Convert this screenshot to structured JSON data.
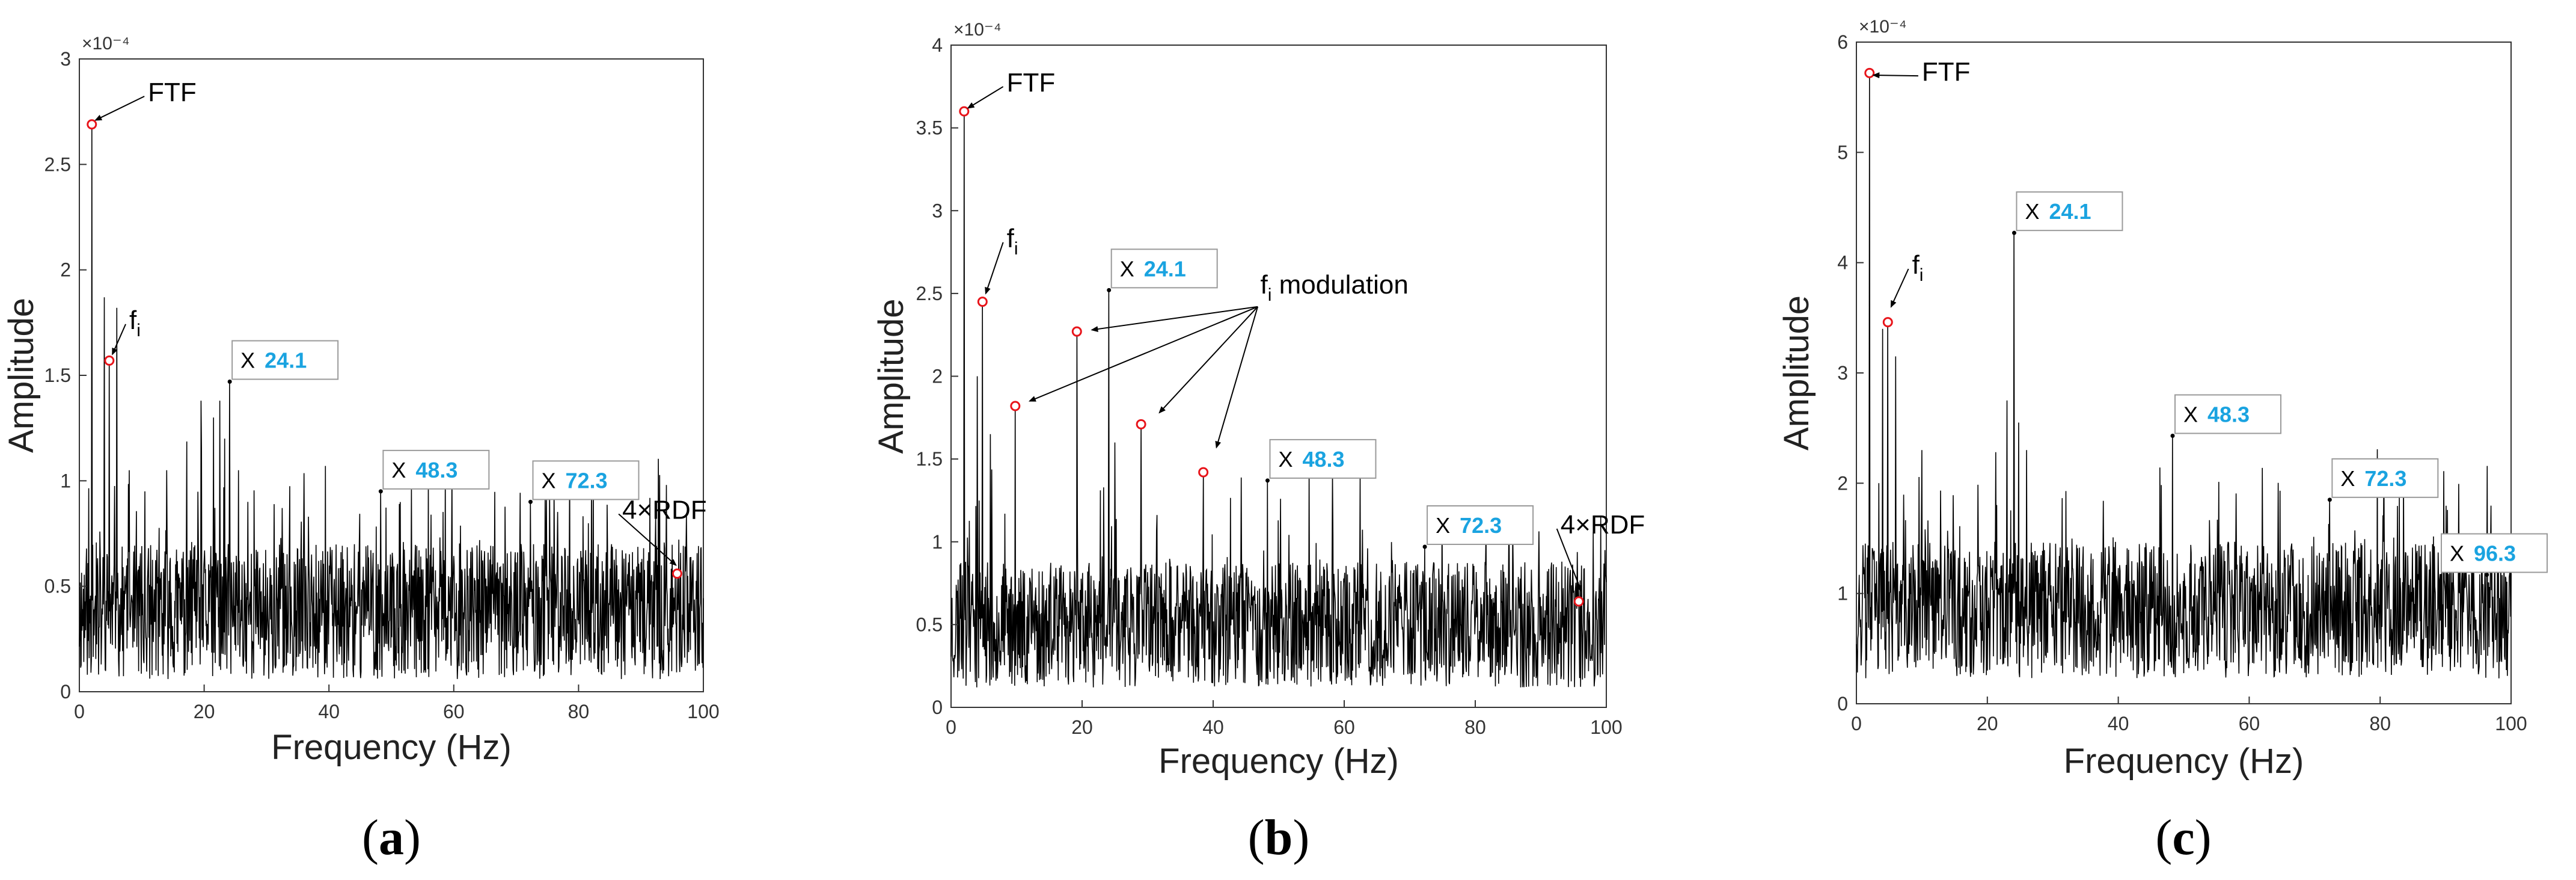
{
  "figure": {
    "panels_caption_open": "(",
    "panels_caption_close": ")"
  },
  "chart_data": [
    {
      "type": "line",
      "subcaption": "a",
      "xlabel": "Frequency (Hz)",
      "ylabel": "Amplitude",
      "xlim": [
        0,
        100
      ],
      "ylim": [
        0,
        3
      ],
      "exponent_label": "×10⁻⁴",
      "x_ticks": [
        0,
        20,
        40,
        60,
        80,
        100
      ],
      "y_ticks": [
        0,
        0.5,
        1,
        1.5,
        2,
        2.5,
        3
      ],
      "y_tick_labels": [
        "0",
        "0.5",
        "1",
        "1.5",
        "2",
        "2.5",
        "3"
      ],
      "noise_level": 0.38,
      "noise_spread": 0.32,
      "seed": 11,
      "peaks": [
        {
          "x": 2.0,
          "y": 2.69
        },
        {
          "x": 4.0,
          "y": 1.87
        },
        {
          "x": 4.8,
          "y": 1.57
        },
        {
          "x": 6.0,
          "y": 1.82
        },
        {
          "x": 8.0,
          "y": 1.05
        },
        {
          "x": 10.5,
          "y": 0.95
        },
        {
          "x": 14.0,
          "y": 1.05
        },
        {
          "x": 19.5,
          "y": 1.38
        },
        {
          "x": 21.5,
          "y": 1.3
        },
        {
          "x": 22.5,
          "y": 1.38
        },
        {
          "x": 23.3,
          "y": 1.2
        },
        {
          "x": 24.1,
          "y": 1.47
        },
        {
          "x": 25.5,
          "y": 1.05
        },
        {
          "x": 27.0,
          "y": 0.9
        },
        {
          "x": 48.3,
          "y": 0.95
        },
        {
          "x": 72.3,
          "y": 0.9
        },
        {
          "x": 95.8,
          "y": 0.56
        }
      ],
      "markers": [
        {
          "x": 2.0,
          "y": 2.69
        },
        {
          "x": 4.8,
          "y": 1.57
        },
        {
          "x": 95.8,
          "y": 0.56
        }
      ],
      "datatips": [
        {
          "x": 24.1,
          "y": 1.47,
          "text": "24.1"
        },
        {
          "x": 48.3,
          "y": 0.95,
          "text": "48.3"
        },
        {
          "x": 72.3,
          "y": 0.9,
          "text": "72.3"
        }
      ],
      "annotations": [
        {
          "text": "FTF",
          "x": 11,
          "y": 2.8,
          "ax": 2.6,
          "ay": 2.71
        },
        {
          "text": "f",
          "sub": "i",
          "x": 8,
          "y": 1.72,
          "ax": 5.3,
          "ay": 1.6
        },
        {
          "text": "4×RDF",
          "x": 87,
          "y": 0.82,
          "ax": 95.6,
          "ay": 0.6
        }
      ]
    },
    {
      "type": "line",
      "subcaption": "b",
      "xlabel": "Frequency (Hz)",
      "ylabel": "Amplitude",
      "xlim": [
        0,
        100
      ],
      "ylim": [
        0,
        4
      ],
      "exponent_label": "×10⁻⁴",
      "x_ticks": [
        0,
        20,
        40,
        60,
        80,
        100
      ],
      "y_ticks": [
        0,
        0.5,
        1,
        1.5,
        2,
        2.5,
        3,
        3.5,
        4
      ],
      "y_tick_labels": [
        "0",
        "0.5",
        "1",
        "1.5",
        "2",
        "2.5",
        "3",
        "3.5",
        "4"
      ],
      "noise_level": 0.5,
      "noise_spread": 0.38,
      "seed": 23,
      "peaks": [
        {
          "x": 2.0,
          "y": 3.6
        },
        {
          "x": 4.0,
          "y": 2.0
        },
        {
          "x": 4.8,
          "y": 2.45
        },
        {
          "x": 6.0,
          "y": 1.65
        },
        {
          "x": 9.8,
          "y": 1.82
        },
        {
          "x": 19.2,
          "y": 2.27
        },
        {
          "x": 24.1,
          "y": 2.52
        },
        {
          "x": 25.0,
          "y": 1.6
        },
        {
          "x": 29.0,
          "y": 1.71
        },
        {
          "x": 38.5,
          "y": 1.42
        },
        {
          "x": 48.3,
          "y": 1.37
        },
        {
          "x": 72.3,
          "y": 0.97
        },
        {
          "x": 95.8,
          "y": 0.64
        }
      ],
      "markers": [
        {
          "x": 2.0,
          "y": 3.6
        },
        {
          "x": 4.8,
          "y": 2.45
        },
        {
          "x": 9.8,
          "y": 1.82
        },
        {
          "x": 19.2,
          "y": 2.27
        },
        {
          "x": 29.0,
          "y": 1.71
        },
        {
          "x": 38.5,
          "y": 1.42
        },
        {
          "x": 95.8,
          "y": 0.64
        }
      ],
      "datatips": [
        {
          "x": 24.1,
          "y": 2.52,
          "text": "24.1"
        },
        {
          "x": 48.3,
          "y": 1.37,
          "text": "48.3"
        },
        {
          "x": 72.3,
          "y": 0.97,
          "text": "72.3"
        }
      ],
      "annotations": [
        {
          "text": "FTF",
          "x": 8.5,
          "y": 3.72,
          "ax": 2.6,
          "ay": 3.62
        },
        {
          "text": "f",
          "sub": "i",
          "x": 8.5,
          "y": 2.78,
          "ax": 5.3,
          "ay": 2.5
        },
        {
          "text": "4×RDF",
          "x": 93,
          "y": 1.05,
          "ax": 96.2,
          "ay": 0.7
        }
      ],
      "fan": {
        "text": "f",
        "sub": "i",
        "suffix": " modulation",
        "tx": 47.2,
        "ty": 2.5,
        "ox": 46.8,
        "oy": 2.42,
        "targets": [
          [
            12.0,
            1.85
          ],
          [
            21.5,
            2.28
          ],
          [
            31.8,
            1.78
          ],
          [
            40.5,
            1.57
          ]
        ]
      }
    },
    {
      "type": "line",
      "subcaption": "c",
      "xlabel": "Frequency (Hz)",
      "ylabel": "Amplitude",
      "xlim": [
        0,
        100
      ],
      "ylim": [
        0,
        6
      ],
      "exponent_label": "×10⁻⁴",
      "x_ticks": [
        0,
        20,
        40,
        60,
        80,
        100
      ],
      "y_ticks": [
        0,
        1,
        2,
        3,
        4,
        5,
        6
      ],
      "y_tick_labels": [
        "0",
        "1",
        "2",
        "3",
        "4",
        "5",
        "6"
      ],
      "noise_level": 0.85,
      "noise_spread": 0.62,
      "seed": 37,
      "peaks": [
        {
          "x": 2.0,
          "y": 5.72
        },
        {
          "x": 4.0,
          "y": 3.4
        },
        {
          "x": 4.8,
          "y": 3.46
        },
        {
          "x": 6.0,
          "y": 3.15
        },
        {
          "x": 10.0,
          "y": 2.3
        },
        {
          "x": 23.0,
          "y": 2.75
        },
        {
          "x": 24.1,
          "y": 4.27
        },
        {
          "x": 24.8,
          "y": 2.55
        },
        {
          "x": 26.0,
          "y": 2.3
        },
        {
          "x": 48.3,
          "y": 2.43
        },
        {
          "x": 72.3,
          "y": 1.85
        },
        {
          "x": 96.3,
          "y": 1.17
        }
      ],
      "markers": [
        {
          "x": 2.0,
          "y": 5.72
        },
        {
          "x": 4.8,
          "y": 3.46
        }
      ],
      "datatips": [
        {
          "x": 24.1,
          "y": 4.27,
          "text": "24.1"
        },
        {
          "x": 48.3,
          "y": 2.43,
          "text": "48.3"
        },
        {
          "x": 72.3,
          "y": 1.85,
          "text": "72.3"
        },
        {
          "x": 96.3,
          "y": 1.17,
          "text": "96.3"
        }
      ],
      "annotations": [
        {
          "text": "FTF",
          "x": 10,
          "y": 5.65,
          "ax": 2.6,
          "ay": 5.7
        },
        {
          "text": "f",
          "sub": "i",
          "x": 8.5,
          "y": 3.9,
          "ax": 5.3,
          "ay": 3.6
        }
      ]
    }
  ],
  "style": {
    "line_color": "#000000",
    "marker_color": "#e8141a",
    "tip_value_color": "#1aa3e0",
    "axis_color": "#333333"
  }
}
